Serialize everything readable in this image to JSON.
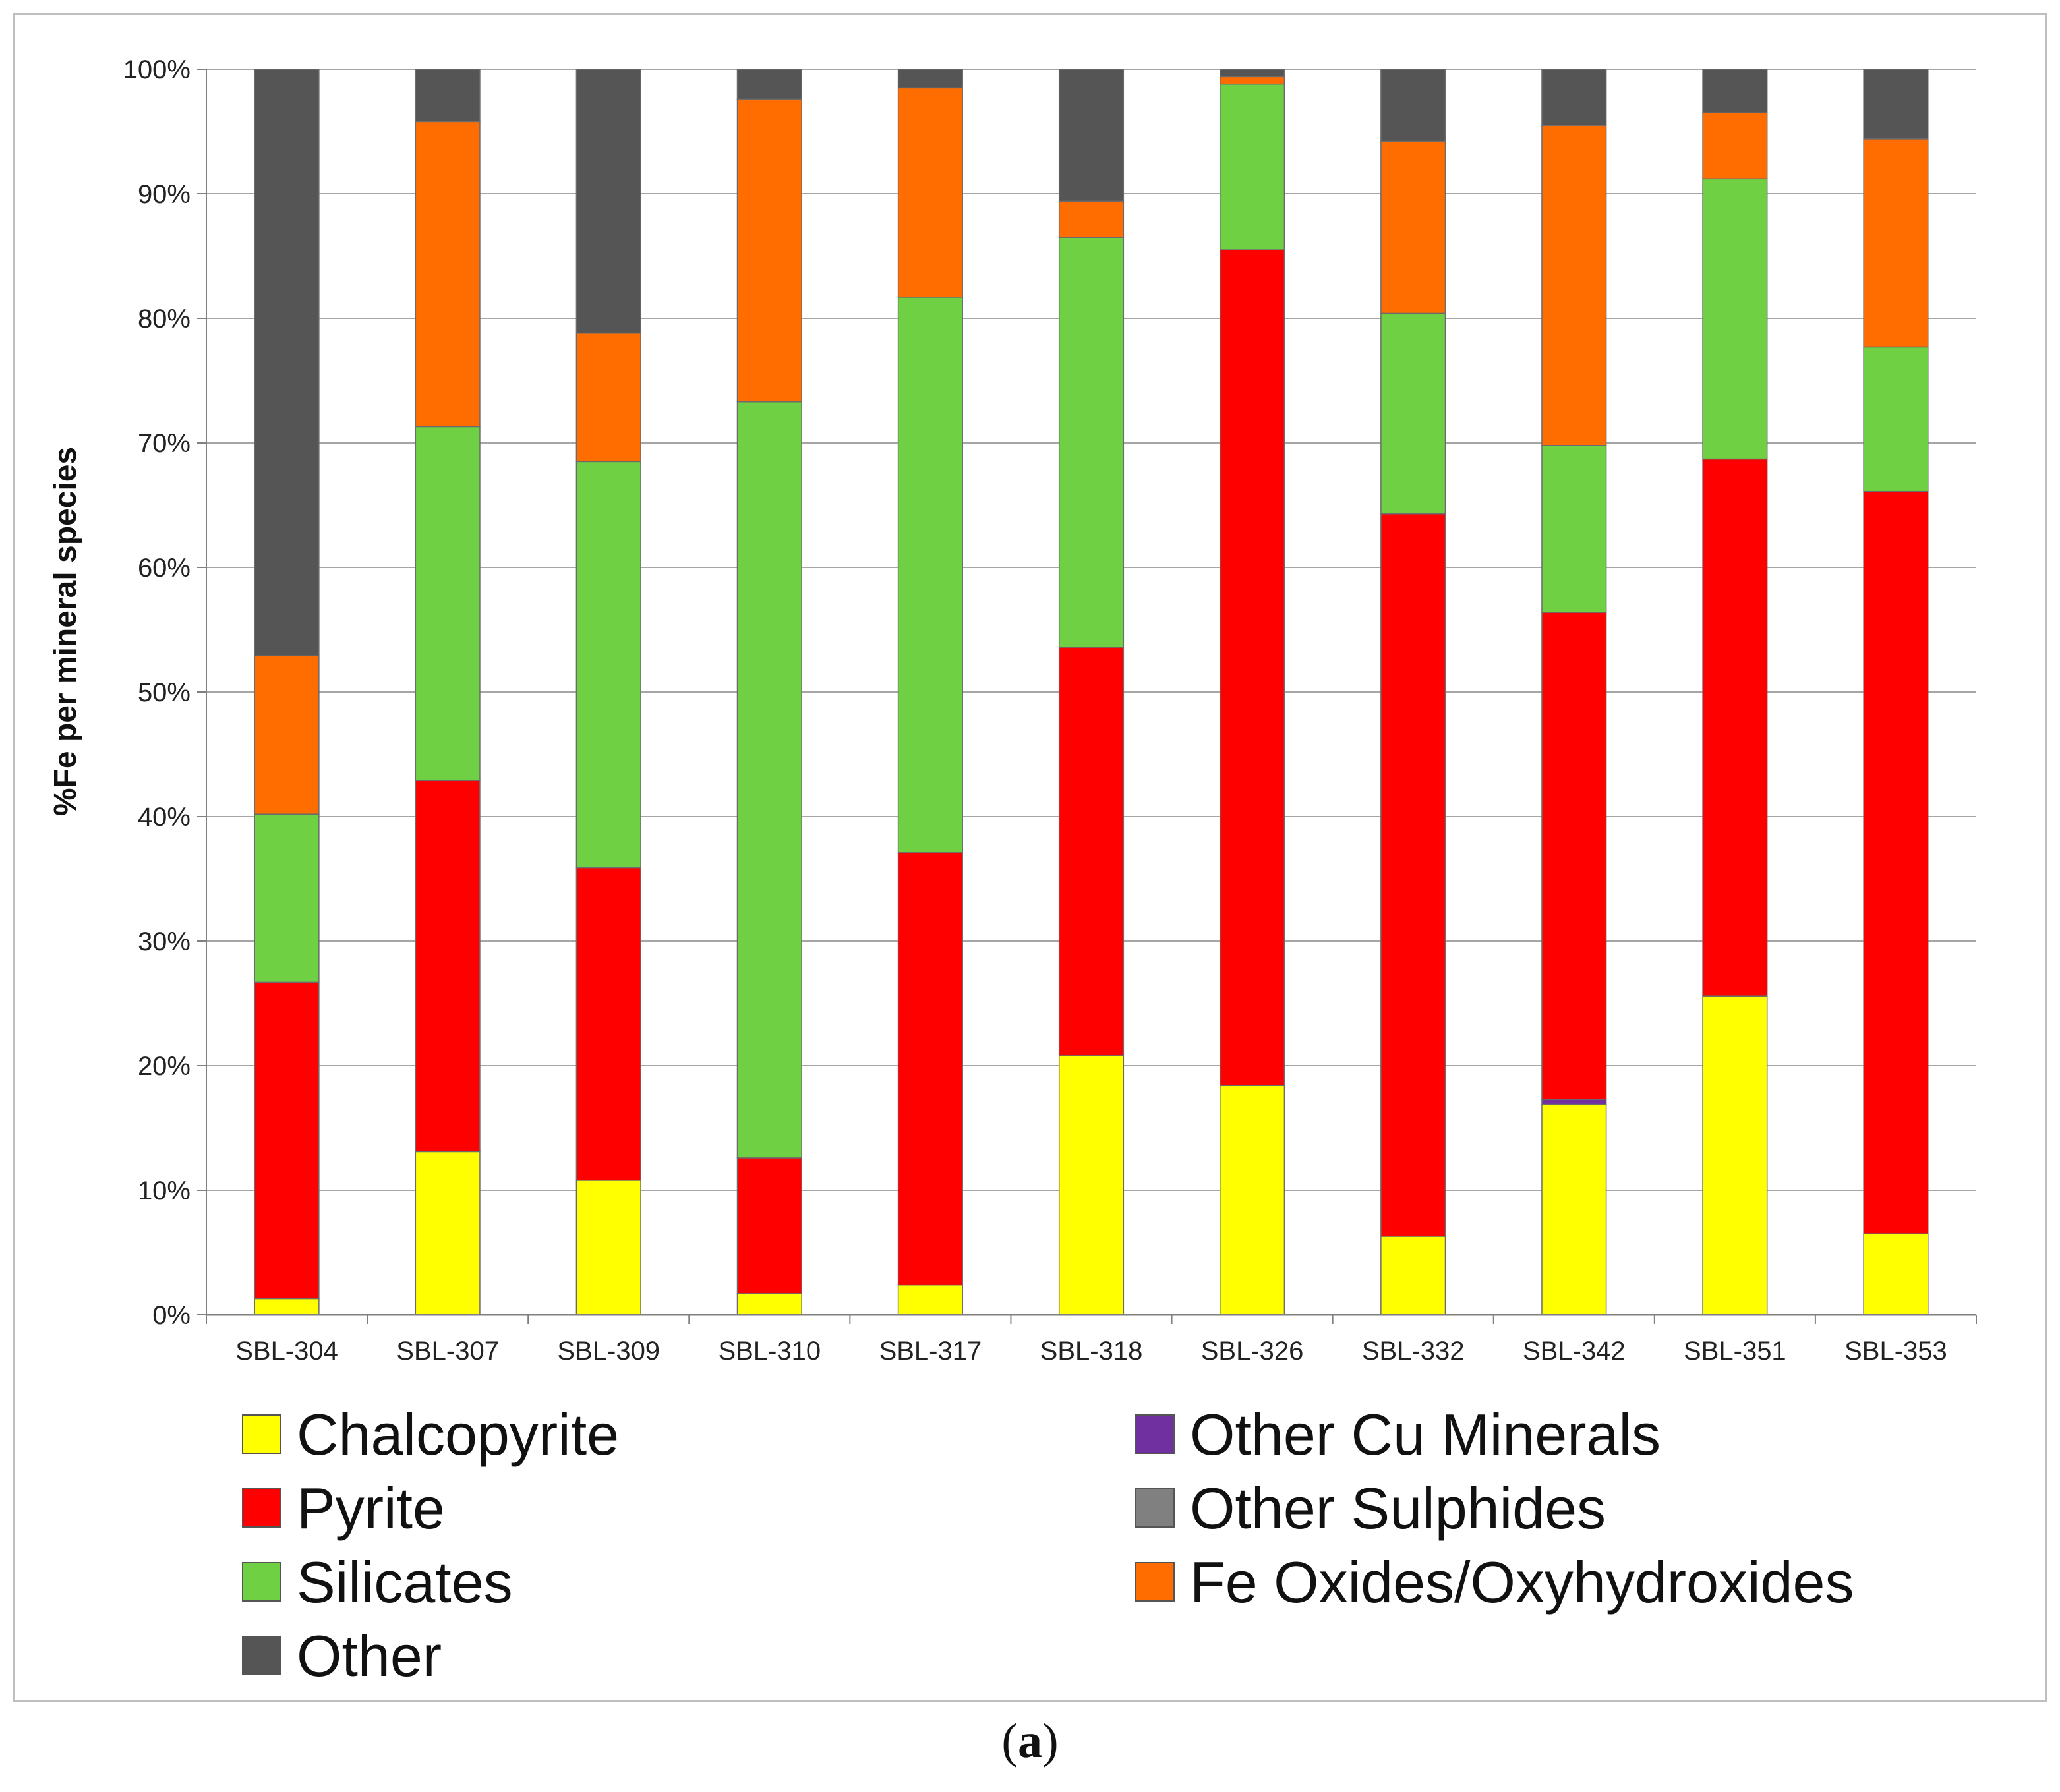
{
  "chart_data": {
    "type": "bar",
    "stacked": true,
    "title": "",
    "xlabel": "",
    "ylabel": "%Fe per mineral species",
    "ylim": [
      0,
      100
    ],
    "ytick_step": 10,
    "ytick_suffix": "%",
    "grid": true,
    "legend_position": "bottom",
    "categories": [
      "SBL-304",
      "SBL-307",
      "SBL-309",
      "SBL-310",
      "SBL-317",
      "SBL-318",
      "SBL-326",
      "SBL-332",
      "SBL-342",
      "SBL-351",
      "SBL-353"
    ],
    "series": [
      {
        "name": "Chalcopyrite",
        "color": "#ffff00",
        "values": [
          1.3,
          13.1,
          10.8,
          1.7,
          2.4,
          20.8,
          18.4,
          6.3,
          16.9,
          25.6,
          6.5
        ]
      },
      {
        "name": "Other Cu Minerals",
        "color": "#7030a0",
        "values": [
          0,
          0,
          0,
          0,
          0,
          0,
          0,
          0,
          0.4,
          0,
          0
        ]
      },
      {
        "name": "Pyrite",
        "color": "#ff0000",
        "values": [
          25.4,
          29.8,
          25.1,
          10.9,
          34.7,
          32.8,
          67.1,
          58.0,
          39.1,
          43.1,
          59.6
        ]
      },
      {
        "name": "Other Sulphides",
        "color": "#808080",
        "values": [
          0,
          0,
          0,
          0,
          0,
          0,
          0,
          0,
          0,
          0,
          0
        ]
      },
      {
        "name": "Silicates",
        "color": "#70d044",
        "values": [
          13.5,
          28.4,
          32.6,
          60.7,
          44.6,
          32.9,
          13.3,
          16.1,
          13.4,
          22.5,
          11.6
        ]
      },
      {
        "name": "Fe Oxides/Oxyhydroxides",
        "color": "#ff6d00",
        "values": [
          12.7,
          24.5,
          10.3,
          24.3,
          16.8,
          2.9,
          0.6,
          13.8,
          25.7,
          5.3,
          16.7
        ]
      },
      {
        "name": "Other",
        "color": "#555555",
        "values": [
          47.1,
          4.2,
          21.2,
          2.4,
          1.5,
          10.6,
          0.6,
          5.8,
          4.5,
          3.5,
          5.6
        ]
      }
    ],
    "stack_order": [
      "Chalcopyrite",
      "Other Cu Minerals",
      "Pyrite",
      "Other Sulphides",
      "Silicates",
      "Fe Oxides/Oxyhydroxides",
      "Other"
    ],
    "legend_columns": [
      [
        "Chalcopyrite",
        "Pyrite",
        "Silicates",
        "Other"
      ],
      [
        "Other Cu Minerals",
        "Other Sulphides",
        "Fe Oxides/Oxyhydroxides"
      ]
    ]
  },
  "caption": {
    "open": "(",
    "letter": "a",
    "close": ")"
  }
}
